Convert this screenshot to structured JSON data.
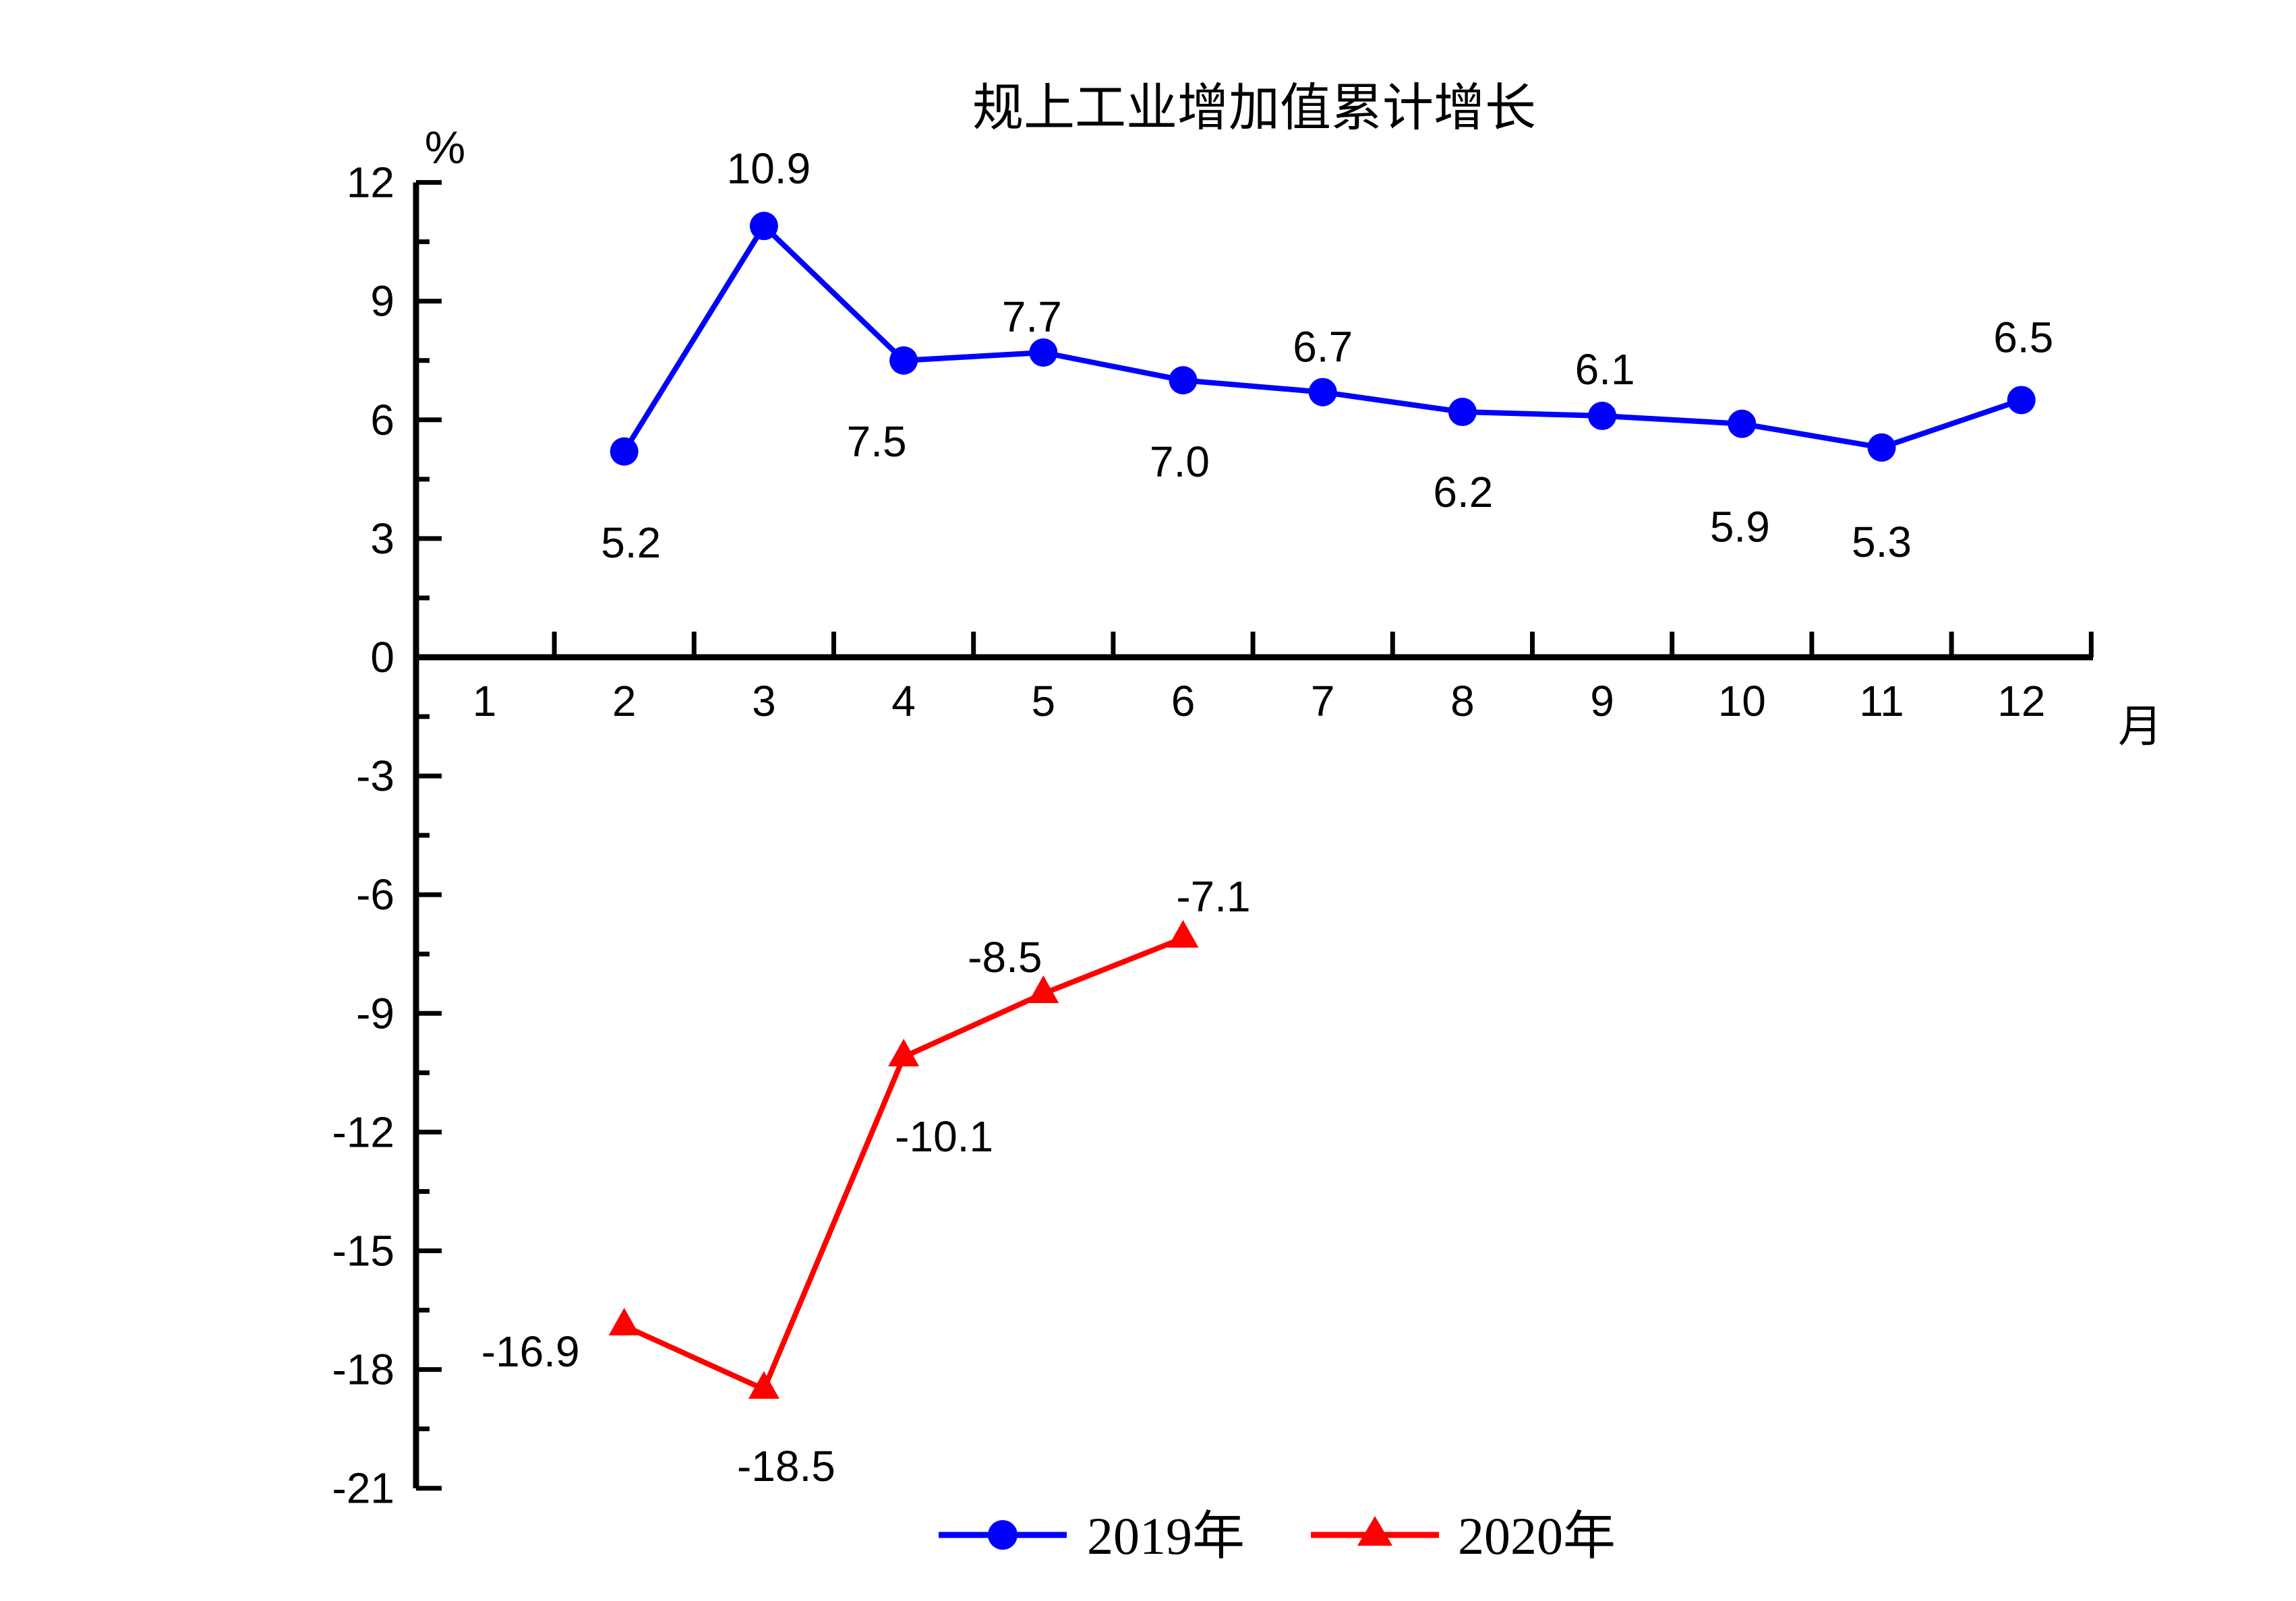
{
  "page": {
    "background_color": "#FFFFFF",
    "axis_color": "#000000",
    "text_color": "#000000"
  },
  "chart_data": {
    "type": "line",
    "title": "规上工业增加值累计增长",
    "y_unit_label": "%",
    "x_unit_label": "月",
    "ylim": [
      -21,
      12
    ],
    "y_major_step": 3,
    "y_minor_step": 1.5,
    "y_major_ticks": [
      12,
      9,
      6,
      3,
      0,
      -3,
      -6,
      -9,
      -12,
      -15,
      -18,
      -21
    ],
    "x_ticks_months": [
      1,
      2,
      3,
      4,
      5,
      6,
      7,
      8,
      9,
      10,
      11,
      12
    ],
    "x_boundary_ticks": [
      1.5,
      2.5,
      3.5,
      4.5,
      5.5,
      6.5,
      7.5,
      8.5,
      9.5,
      10.5,
      11.5,
      12.5
    ],
    "x_axis_at_y": 0,
    "grid": "off",
    "legend_position": "bottom-center",
    "series": [
      {
        "name": "2019年",
        "color": "#0000FF",
        "marker": "circle",
        "x": [
          2,
          3,
          4,
          5,
          6,
          7,
          8,
          9,
          10,
          11,
          12
        ],
        "values": [
          5.2,
          10.9,
          7.5,
          7.7,
          7.0,
          6.7,
          6.2,
          6.1,
          5.9,
          5.3,
          6.5
        ],
        "labels": [
          "5.2",
          "10.9",
          "7.5",
          "7.7",
          "7.0",
          "6.7",
          "6.2",
          "6.1",
          "5.9",
          "5.3",
          "6.5"
        ],
        "label_offsets": [
          [
            10,
            135
          ],
          [
            7,
            -85
          ],
          [
            -40,
            120
          ],
          [
            -17,
            -53
          ],
          [
            -5,
            121
          ],
          [
            0,
            -67
          ],
          [
            1,
            119
          ],
          [
            4,
            -69
          ],
          [
            -3,
            153
          ],
          [
            0,
            140
          ],
          [
            3,
            -93
          ]
        ]
      },
      {
        "name": "2020年",
        "color": "#FF0000",
        "marker": "triangle",
        "x": [
          2,
          3,
          4,
          5,
          6
        ],
        "values": [
          -16.9,
          -18.5,
          -10.1,
          -8.5,
          -7.1
        ],
        "labels": [
          "-16.9",
          "-18.5",
          "-10.1",
          "-8.5",
          "-7.1"
        ],
        "label_offsets": [
          [
            -139,
            38
          ],
          [
            33,
            114
          ],
          [
            60,
            118
          ],
          [
            -57,
            -54
          ],
          [
            45,
            -62
          ]
        ]
      }
    ]
  }
}
